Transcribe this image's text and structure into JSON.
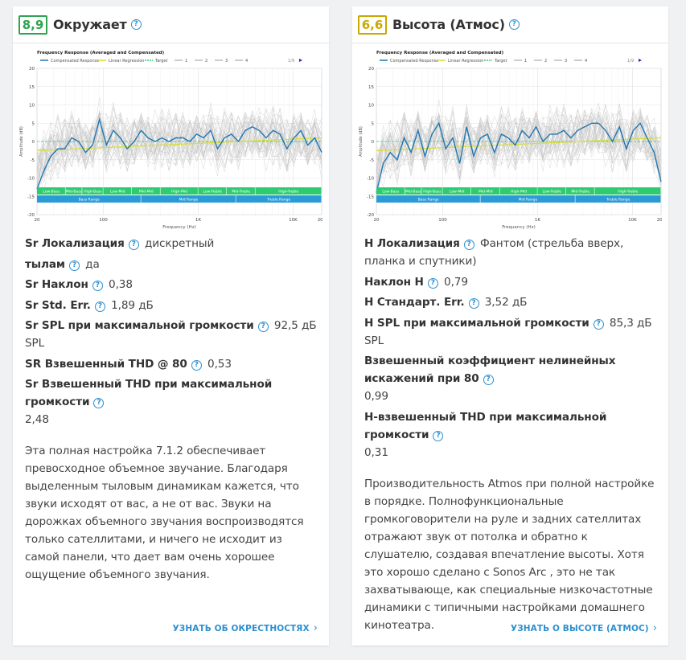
{
  "cards": [
    {
      "score": "8,9",
      "score_color": "#2ea44f",
      "title": "Окружает",
      "graph": {
        "title": "Frequency Response (Averaged and Compensated)",
        "legend": [
          "Compensated Response",
          "Linear Regression",
          "Target",
          "1",
          "2",
          "3",
          "4"
        ],
        "pager": "1/9",
        "y_axis_label": "Amplitude (dB)",
        "x_axis_label": "Frequency (Hz)",
        "y_ticks": [
          "20",
          "15",
          "10",
          "5",
          "0",
          "-5",
          "-10",
          "-15",
          "-20"
        ],
        "x_ticks": [
          "20",
          "100",
          "1K",
          "10K",
          "20K"
        ],
        "bands_top": [
          "Low-Bass",
          "Mid-Bass",
          "High-Bass",
          "Low-Mid",
          "Mid-Mid",
          "High-Mid",
          "Low-Treble",
          "Mid-Treble",
          "High-Treble"
        ],
        "bands_bottom": [
          "Bass Range",
          "Mid Range",
          "Treble Range"
        ],
        "response_db": [
          -13,
          -8,
          -4,
          -2,
          -2,
          1,
          0,
          -3,
          -1,
          6,
          -1,
          3,
          1,
          -2,
          0,
          3,
          1,
          0,
          1,
          0,
          1,
          1,
          0,
          2,
          1,
          3,
          -2,
          1,
          2,
          0,
          3,
          4,
          3,
          1,
          3,
          2,
          -2,
          1,
          3,
          -1,
          1,
          -3
        ]
      },
      "params": [
        {
          "name": "Sr Локализация",
          "value": "дискретный"
        },
        {
          "name": "тылам",
          "value": "да"
        },
        {
          "name": "Sr Наклон",
          "value": "0,38"
        },
        {
          "name": "Sr Std. Err.",
          "value": "1,89 дБ"
        },
        {
          "name": "Sr SPL при максимальной громкости",
          "value": "92,5 дБ SPL"
        },
        {
          "name": "SR Взвешенный THD @ 80",
          "value": "0,53"
        },
        {
          "name": "Sr Взвешенный THD при максимальной громкости",
          "value": "2,48"
        }
      ],
      "description": "Эта полная настройка 7.1.2 обеспечивает превосходное объемное звучание. Благодаря выделенным тыловым динамикам кажется, что звуки исходят от вас, а не от вас. Звуки на дорожках объемного звучания воспроизводятся только сателлитами, и ничего не исходит из самой панели, что дает вам очень хорошее ощущение объемного звучания.",
      "more_label": "УЗНАТЬ ОБ ОКРЕСТНОСТЯХ"
    },
    {
      "score": "6,6",
      "score_color": "#c9a800",
      "title": "Высота (Атмос)",
      "graph": {
        "title": "Frequency Response (Averaged and Compensated)",
        "legend": [
          "Compensated Response",
          "Linear Regression",
          "Target",
          "1",
          "2",
          "3",
          "4"
        ],
        "pager": "1/9",
        "y_axis_label": "Amplitude (dB)",
        "x_axis_label": "Frequency (Hz)",
        "y_ticks": [
          "20",
          "15",
          "10",
          "5",
          "0",
          "-5",
          "-10",
          "-15",
          "-20"
        ],
        "x_ticks": [
          "20",
          "100",
          "1K",
          "10K",
          "20K"
        ],
        "bands_top": [
          "Low-Bass",
          "Mid-Bass",
          "High-Bass",
          "Low-Mid",
          "Mid-Mid",
          "High-Mid",
          "Low-Treble",
          "Mid-Treble",
          "High-Treble"
        ],
        "bands_bottom": [
          "Bass Range",
          "Mid Range",
          "Treble Range"
        ],
        "response_db": [
          -14,
          -6,
          -3,
          -5,
          1,
          -3,
          3,
          -4,
          2,
          5,
          -2,
          1,
          -6,
          4,
          -4,
          1,
          2,
          -3,
          2,
          1,
          -1,
          3,
          1,
          4,
          0,
          2,
          2,
          3,
          1,
          3,
          4,
          5,
          5,
          3,
          0,
          4,
          -2,
          3,
          5,
          1,
          -3,
          -11
        ]
      },
      "params": [
        {
          "name": "H Локализация",
          "value": "Фантом (стрельба вверх, планка и спутники)"
        },
        {
          "name": "Наклон Н",
          "value": "0,79"
        },
        {
          "name": "H Стандарт. Err.",
          "value": "3,52 дБ"
        },
        {
          "name": "H SPL при максимальной громкости",
          "value": "85,3 дБ SPL"
        },
        {
          "name": "Взвешенный коэффициент нелинейных искажений при 80",
          "value": "0,99"
        },
        {
          "name": "H-взвешенный THD при максимальной громкости",
          "value": "0,31"
        }
      ],
      "description": "Производительность Atmos при полной настройке в порядке. Полнофункциональные громкоговорители на руле и задних сателлитах отражают звук от потолка и обратно к слушателю, создавая впечатление высоты. Хотя это хорошо сделано с Sonos Arc , это не так захватывающе, как специальные низкочастотные динамики с типичными настройками домашнего кинотеатра.",
      "more_label": "УЗНАТЬ О ВЫСОТЕ (АТМОС)"
    }
  ]
}
